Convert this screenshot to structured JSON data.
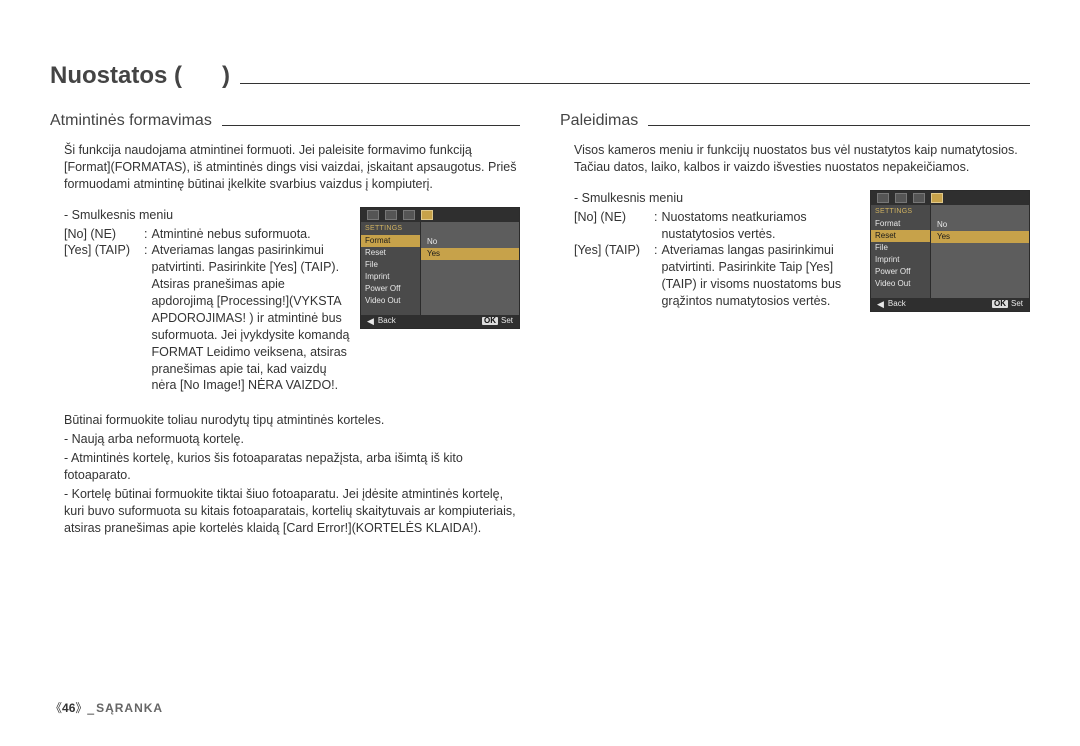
{
  "title": "Nuostatos (      )",
  "left": {
    "heading": "Atmintinės formavimas",
    "intro": "Ši funkcija naudojama atmintinei formuoti. Jei paleisite formavimo funkciją [Format](FORMATAS), iš atmintinės dings visi vaizdai, įskaitant apsaugotus. Prieš formuodami atmintinę būtinai įkelkite svarbius vaizdus į kompiuterį.",
    "submenu_label": "- Smulkesnis meniu",
    "no_key": "[No] (NE)",
    "no_val": "Atmintinė nebus suformuota.",
    "yes_key": "[Yes] (TAIP)",
    "yes_val": "Atveriamas langas pasirinkimui patvirtinti. Pasirinkite [Yes] (TAIP). Atsiras pranešimas apie apdorojimą [Processing!](VYKSTA APDOROJIMAS! ) ir atmintinė bus suformuota. Jei įvykdysite komandą FORMAT Leidimo veiksena, atsiras pranešimas apie tai, kad vaizdų nėra [No Image!] NĖRA VAIZDO!.",
    "notes_lead": "Būtinai formuokite toliau nurodytų tipų atmintinės korteles.",
    "note1": "- Naują arba neformuotą kortelę.",
    "note2": "- Atmintinės kortelę, kurios šis fotoaparatas nepažįsta, arba išimtą iš kito fotoaparato.",
    "note3": "- Kortelę būtinai formuokite tiktai šiuo fotoaparatu. Jei įdėsite atmintinės kortelę, kuri buvo suformuota su kitais fotoaparatais, kortelių skaitytuvais ar kompiuteriais, atsiras pranešimas apie kortelės klaidą [Card Error!](KORTELĖS KLAIDA!).",
    "lcd": {
      "settings": "SETTINGS",
      "items": [
        "Format",
        "Reset",
        "File",
        "Imprint",
        "Power Off",
        "Video Out"
      ],
      "active_index": 0,
      "options": [
        "No",
        "Yes"
      ],
      "selected_index": 1,
      "back": "Back",
      "set": "Set",
      "ok": "OK"
    }
  },
  "right": {
    "heading": "Paleidimas",
    "intro": "Visos kameros meniu ir funkcijų nuostatos bus vėl nustatytos kaip numatytosios. Tačiau datos, laiko, kalbos ir vaizdo išvesties nuostatos nepakeičiamos.",
    "submenu_label": "- Smulkesnis meniu",
    "no_key": "[No] (NE)",
    "no_val": "Nuostatoms neatkuriamos nustatytosios vertės.",
    "yes_key": "[Yes] (TAIP)",
    "yes_val": "Atveriamas langas pasirinkimui patvirtinti. Pasirinkite Taip [Yes](TAIP) ir visoms nuostatoms bus grąžintos numatytosios vertės.",
    "lcd": {
      "settings": "SETTINGS",
      "items": [
        "Format",
        "Reset",
        "File",
        "Imprint",
        "Power Off",
        "Video Out"
      ],
      "active_index": 1,
      "options": [
        "No",
        "Yes"
      ],
      "selected_index": 1,
      "back": "Back",
      "set": "Set",
      "ok": "OK"
    }
  },
  "footer": {
    "num": "46",
    "section": "SĄRANKA"
  }
}
